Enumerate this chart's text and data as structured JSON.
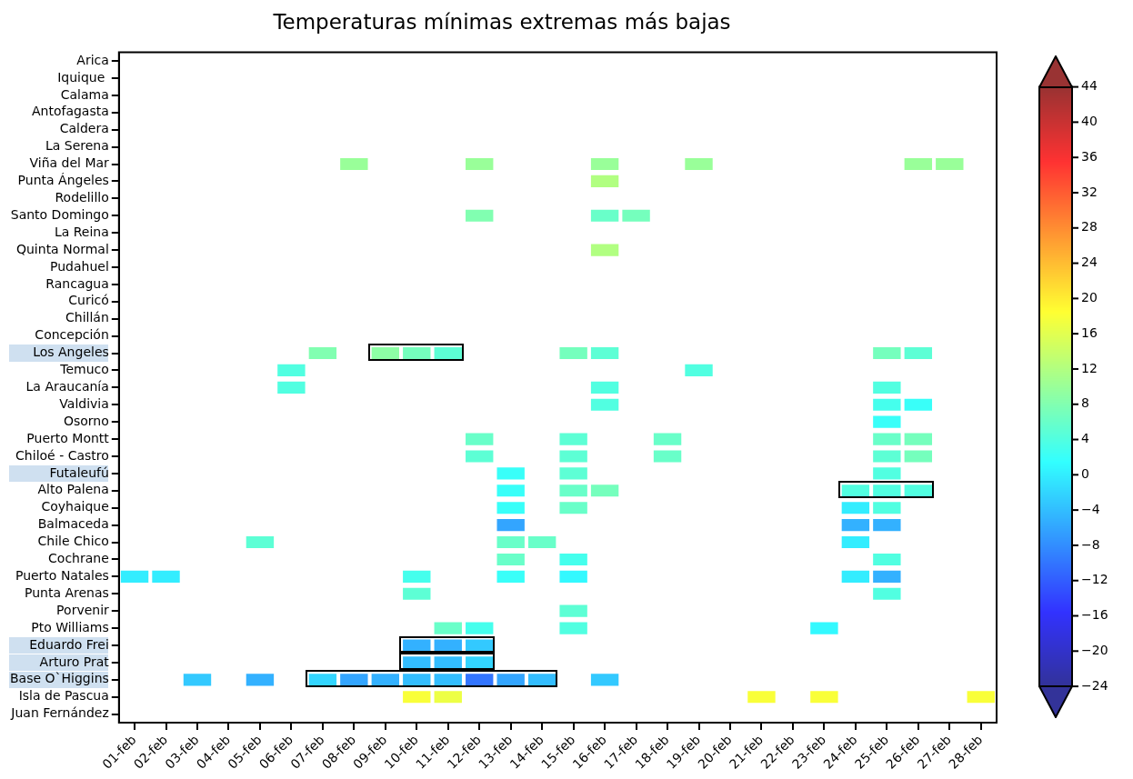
{
  "chart_data": {
    "type": "heatmap",
    "title": "Temperaturas mínimas extremas más bajas",
    "categories": [
      "01-feb",
      "02-feb",
      "03-feb",
      "04-feb",
      "05-feb",
      "06-feb",
      "07-feb",
      "08-feb",
      "09-feb",
      "10-feb",
      "11-feb",
      "12-feb",
      "13-feb",
      "14-feb",
      "15-feb",
      "16-feb",
      "17-feb",
      "18-feb",
      "19-feb",
      "20-feb",
      "21-feb",
      "22-feb",
      "23-feb",
      "24-feb",
      "25-feb",
      "26-feb",
      "27-feb",
      "28-feb"
    ],
    "y_categories": [
      "Arica",
      "Iquique ",
      "Calama",
      "Antofagasta",
      "Caldera",
      "La Serena",
      "Viña del Mar",
      "Punta Ángeles",
      "Rodelillo",
      "Santo Domingo",
      "La Reina",
      "Quinta Normal",
      "Pudahuel",
      "Rancagua",
      "Curicó",
      "Chillán",
      "Concepción",
      "Los Angeles",
      "Temuco",
      "La Araucanía",
      "Valdivia",
      "Osorno",
      "Puerto Montt",
      "Chiloé - Castro",
      "Futaleufú",
      "Alto Palena",
      "Coyhaique",
      "Balmaceda",
      "Chile Chico",
      "Cochrane",
      "Puerto Natales",
      "Punta Arenas",
      "Porvenir",
      "Pto Williams",
      "Eduardo Frei",
      "Arturo Prat",
      "Base O`Higgins",
      "Isla de Pascua",
      "Juan Fernández"
    ],
    "cells": [
      [
        null,
        null,
        null,
        null,
        null,
        null,
        null,
        null,
        null,
        null,
        null,
        null,
        null,
        null,
        null,
        null,
        null,
        null,
        null,
        null,
        null,
        null,
        null,
        null,
        null,
        null,
        null,
        null
      ],
      [
        null,
        null,
        null,
        null,
        null,
        null,
        null,
        null,
        null,
        null,
        null,
        null,
        null,
        null,
        null,
        null,
        null,
        null,
        null,
        null,
        null,
        null,
        null,
        null,
        null,
        null,
        null,
        null
      ],
      [
        null,
        null,
        null,
        null,
        null,
        null,
        null,
        null,
        null,
        null,
        null,
        null,
        null,
        null,
        null,
        null,
        null,
        null,
        null,
        null,
        null,
        null,
        null,
        null,
        null,
        null,
        null,
        null
      ],
      [
        null,
        null,
        null,
        null,
        null,
        null,
        null,
        null,
        null,
        null,
        null,
        null,
        null,
        null,
        null,
        null,
        null,
        null,
        null,
        null,
        null,
        null,
        null,
        null,
        null,
        null,
        null,
        null
      ],
      [
        null,
        null,
        null,
        null,
        null,
        null,
        null,
        null,
        null,
        null,
        null,
        null,
        null,
        null,
        null,
        null,
        null,
        null,
        null,
        null,
        null,
        null,
        null,
        null,
        null,
        null,
        null,
        null
      ],
      [
        null,
        null,
        null,
        null,
        null,
        null,
        null,
        null,
        null,
        null,
        null,
        null,
        null,
        null,
        null,
        null,
        null,
        null,
        null,
        null,
        null,
        null,
        null,
        null,
        null,
        null,
        null,
        null
      ],
      [
        null,
        null,
        null,
        null,
        null,
        null,
        null,
        10,
        null,
        null,
        null,
        10,
        null,
        null,
        null,
        10,
        null,
        null,
        10,
        null,
        null,
        null,
        null,
        null,
        null,
        10,
        10,
        null
      ],
      [
        null,
        null,
        null,
        null,
        null,
        null,
        null,
        null,
        null,
        null,
        null,
        null,
        null,
        null,
        null,
        12,
        null,
        null,
        null,
        null,
        null,
        null,
        null,
        null,
        null,
        null,
        null,
        null
      ],
      [
        null,
        null,
        null,
        null,
        null,
        null,
        null,
        null,
        null,
        null,
        null,
        null,
        null,
        null,
        null,
        null,
        null,
        null,
        null,
        null,
        null,
        null,
        null,
        null,
        null,
        null,
        null,
        null
      ],
      [
        null,
        null,
        null,
        null,
        null,
        null,
        null,
        null,
        null,
        null,
        null,
        8,
        null,
        null,
        null,
        6,
        7,
        null,
        null,
        null,
        null,
        null,
        null,
        null,
        null,
        null,
        null,
        null
      ],
      [
        null,
        null,
        null,
        null,
        null,
        null,
        null,
        null,
        null,
        null,
        null,
        null,
        null,
        null,
        null,
        null,
        null,
        null,
        null,
        null,
        null,
        null,
        null,
        null,
        null,
        null,
        null,
        null
      ],
      [
        null,
        null,
        null,
        null,
        null,
        null,
        null,
        null,
        null,
        null,
        null,
        null,
        null,
        null,
        null,
        12,
        null,
        null,
        null,
        null,
        null,
        null,
        null,
        null,
        null,
        null,
        null,
        null
      ],
      [
        null,
        null,
        null,
        null,
        null,
        null,
        null,
        null,
        null,
        null,
        null,
        null,
        null,
        null,
        null,
        null,
        null,
        null,
        null,
        null,
        null,
        null,
        null,
        null,
        null,
        null,
        null,
        null
      ],
      [
        null,
        null,
        null,
        null,
        null,
        null,
        null,
        null,
        null,
        null,
        null,
        null,
        null,
        null,
        null,
        null,
        null,
        null,
        null,
        null,
        null,
        null,
        null,
        null,
        null,
        null,
        null,
        null
      ],
      [
        null,
        null,
        null,
        null,
        null,
        null,
        null,
        null,
        null,
        null,
        null,
        null,
        null,
        null,
        null,
        null,
        null,
        null,
        null,
        null,
        null,
        null,
        null,
        null,
        null,
        null,
        null,
        null
      ],
      [
        null,
        null,
        null,
        null,
        null,
        null,
        null,
        null,
        null,
        null,
        null,
        null,
        null,
        null,
        null,
        null,
        null,
        null,
        null,
        null,
        null,
        null,
        null,
        null,
        null,
        null,
        null,
        null
      ],
      [
        null,
        null,
        null,
        null,
        null,
        null,
        null,
        null,
        null,
        null,
        null,
        null,
        null,
        null,
        null,
        null,
        null,
        null,
        null,
        null,
        null,
        null,
        null,
        null,
        null,
        null,
        null,
        null
      ],
      [
        null,
        null,
        null,
        null,
        null,
        null,
        8,
        null,
        9,
        7,
        5,
        null,
        null,
        null,
        7,
        5,
        null,
        null,
        null,
        null,
        null,
        null,
        null,
        null,
        7,
        5,
        null,
        null
      ],
      [
        null,
        null,
        null,
        null,
        null,
        4,
        null,
        null,
        null,
        null,
        null,
        null,
        null,
        null,
        null,
        null,
        null,
        null,
        4,
        null,
        null,
        null,
        null,
        null,
        null,
        null,
        null,
        null
      ],
      [
        null,
        null,
        null,
        null,
        null,
        4,
        null,
        null,
        null,
        null,
        null,
        null,
        null,
        null,
        null,
        4,
        null,
        null,
        null,
        null,
        null,
        null,
        null,
        null,
        4,
        null,
        null,
        null
      ],
      [
        null,
        null,
        null,
        null,
        null,
        null,
        null,
        null,
        null,
        null,
        null,
        null,
        null,
        null,
        null,
        4,
        null,
        null,
        null,
        null,
        null,
        null,
        null,
        null,
        3,
        2,
        null,
        null
      ],
      [
        null,
        null,
        null,
        null,
        null,
        null,
        null,
        null,
        null,
        null,
        null,
        null,
        null,
        null,
        null,
        null,
        null,
        null,
        null,
        null,
        null,
        null,
        null,
        null,
        2,
        null,
        null,
        null
      ],
      [
        null,
        null,
        null,
        null,
        null,
        null,
        null,
        null,
        null,
        null,
        null,
        6,
        null,
        null,
        5,
        null,
        null,
        6,
        null,
        null,
        null,
        null,
        null,
        null,
        6,
        7,
        null,
        null
      ],
      [
        null,
        null,
        null,
        null,
        null,
        null,
        null,
        null,
        null,
        null,
        null,
        5,
        null,
        null,
        5,
        null,
        null,
        6,
        null,
        null,
        null,
        null,
        null,
        null,
        5,
        7,
        null,
        null
      ],
      [
        null,
        null,
        null,
        null,
        null,
        null,
        null,
        null,
        null,
        null,
        null,
        null,
        2,
        null,
        5,
        null,
        null,
        null,
        null,
        null,
        null,
        null,
        null,
        null,
        4,
        null,
        null,
        null
      ],
      [
        null,
        null,
        null,
        null,
        null,
        null,
        null,
        null,
        null,
        null,
        null,
        null,
        2,
        null,
        6,
        7,
        null,
        null,
        null,
        null,
        null,
        null,
        null,
        4,
        4,
        4,
        null,
        null
      ],
      [
        null,
        null,
        null,
        null,
        null,
        null,
        null,
        null,
        null,
        null,
        null,
        null,
        2,
        null,
        6,
        null,
        null,
        null,
        null,
        null,
        null,
        null,
        null,
        0,
        4,
        null,
        null,
        null
      ],
      [
        null,
        null,
        null,
        null,
        null,
        null,
        null,
        null,
        null,
        null,
        null,
        null,
        -6,
        null,
        null,
        null,
        null,
        null,
        null,
        null,
        null,
        null,
        null,
        -5,
        -5,
        null,
        null,
        null
      ],
      [
        null,
        null,
        null,
        null,
        5,
        null,
        null,
        null,
        null,
        null,
        null,
        null,
        6,
        6,
        null,
        null,
        null,
        null,
        null,
        null,
        null,
        null,
        null,
        0,
        null,
        null,
        null,
        null
      ],
      [
        null,
        null,
        null,
        null,
        null,
        null,
        null,
        null,
        null,
        null,
        null,
        null,
        6,
        null,
        3,
        null,
        null,
        null,
        null,
        null,
        null,
        null,
        null,
        null,
        4,
        null,
        null,
        null
      ],
      [
        0,
        0,
        null,
        null,
        null,
        null,
        null,
        null,
        null,
        3,
        null,
        null,
        2,
        null,
        1,
        null,
        null,
        null,
        null,
        null,
        null,
        null,
        null,
        0,
        -5,
        null,
        null,
        null
      ],
      [
        null,
        null,
        null,
        null,
        null,
        null,
        null,
        null,
        null,
        5,
        null,
        null,
        null,
        null,
        null,
        null,
        null,
        null,
        null,
        null,
        null,
        null,
        null,
        null,
        4,
        null,
        null,
        null
      ],
      [
        null,
        null,
        null,
        null,
        null,
        null,
        null,
        null,
        null,
        null,
        null,
        null,
        null,
        null,
        5,
        null,
        null,
        null,
        null,
        null,
        null,
        null,
        null,
        null,
        null,
        null,
        null,
        null
      ],
      [
        null,
        null,
        null,
        null,
        null,
        null,
        null,
        null,
        null,
        null,
        6,
        3,
        null,
        null,
        4,
        null,
        null,
        null,
        null,
        null,
        null,
        null,
        1,
        null,
        null,
        null,
        null,
        null
      ],
      [
        null,
        null,
        null,
        null,
        null,
        null,
        null,
        null,
        null,
        -5,
        -5,
        -3,
        null,
        null,
        null,
        null,
        null,
        null,
        null,
        null,
        null,
        null,
        null,
        null,
        null,
        null,
        null,
        null
      ],
      [
        null,
        null,
        null,
        null,
        null,
        null,
        null,
        null,
        null,
        -4,
        -4,
        -2,
        null,
        null,
        null,
        null,
        null,
        null,
        null,
        null,
        null,
        null,
        null,
        null,
        null,
        null,
        null,
        null
      ],
      [
        null,
        null,
        -3,
        null,
        -5,
        null,
        -2,
        -6,
        -5,
        -4,
        -4,
        -10,
        -6,
        -4,
        null,
        -3,
        null,
        null,
        null,
        null,
        null,
        null,
        null,
        null,
        null,
        null,
        null,
        null
      ],
      [
        null,
        null,
        null,
        null,
        null,
        null,
        null,
        null,
        null,
        18,
        17,
        null,
        null,
        null,
        null,
        null,
        null,
        null,
        null,
        null,
        18,
        null,
        18,
        null,
        null,
        null,
        null,
        18
      ],
      [
        null,
        null,
        null,
        null,
        null,
        null,
        null,
        null,
        null,
        null,
        null,
        null,
        null,
        null,
        null,
        null,
        null,
        null,
        null,
        null,
        null,
        null,
        null,
        null,
        null,
        null,
        null,
        null
      ]
    ],
    "clim": [
      -24,
      44
    ],
    "cticks": [
      -24,
      -20,
      -16,
      -12,
      -8,
      -4,
      0,
      4,
      8,
      12,
      16,
      20,
      24,
      28,
      32,
      36,
      40,
      44
    ]
  }
}
